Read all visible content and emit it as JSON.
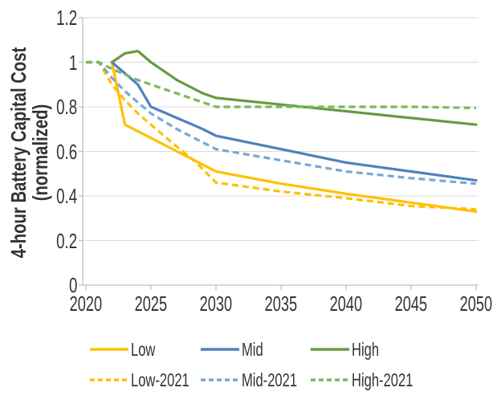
{
  "chart_data": {
    "type": "line",
    "ylabel": "4-hour Battery Capital Cost (normalized)",
    "ylabel_lines": [
      "4-hour Battery Capital Cost",
      "(normalized)"
    ],
    "xlabel": "",
    "xlim": [
      2020,
      2050
    ],
    "ylim": [
      0,
      1.2
    ],
    "x_ticks": [
      2020,
      2025,
      2030,
      2035,
      2040,
      2045,
      2050
    ],
    "x_tick_labels": [
      "2020",
      "2025",
      "2030",
      "2035",
      "2040",
      "2045",
      "2050"
    ],
    "y_ticks": [
      0,
      0.2,
      0.4,
      0.6,
      0.8,
      1,
      1.2
    ],
    "y_tick_labels": [
      "0",
      "0.2",
      "0.4",
      "0.6",
      "0.8",
      "1",
      "1.2"
    ],
    "grid": "horizontal",
    "legend_position": "bottom",
    "colors": {
      "low": "#FFC000",
      "low_2021": "#FFC000",
      "mid": "#4F81BD",
      "mid_2021": "#7BA7D7",
      "high": "#689B41",
      "high_2021": "#7CB85A",
      "gridline": "#d9d9d9",
      "axis": "#bfbfbf",
      "text": "#333333"
    },
    "series": [
      {
        "name": "Low",
        "color": "#FFC000",
        "dash": false,
        "x": [
          2022,
          2023,
          2024,
          2025,
          2026,
          2027,
          2028,
          2029,
          2030,
          2035,
          2040,
          2045,
          2050
        ],
        "y": [
          1.0,
          0.72,
          0.69,
          0.66,
          0.63,
          0.6,
          0.57,
          0.54,
          0.51,
          0.455,
          0.41,
          0.37,
          0.33
        ]
      },
      {
        "name": "Mid",
        "color": "#4F81BD",
        "dash": false,
        "x": [
          2022,
          2023,
          2024,
          2025,
          2026,
          2027,
          2028,
          2029,
          2030,
          2035,
          2040,
          2045,
          2050
        ],
        "y": [
          1.0,
          0.95,
          0.9,
          0.8,
          0.775,
          0.75,
          0.725,
          0.7,
          0.67,
          0.61,
          0.55,
          0.51,
          0.47
        ]
      },
      {
        "name": "High",
        "color": "#689B41",
        "dash": false,
        "x": [
          2022,
          2023,
          2024,
          2025,
          2026,
          2027,
          2028,
          2029,
          2030,
          2035,
          2040,
          2045,
          2050
        ],
        "y": [
          1.0,
          1.04,
          1.05,
          1.0,
          0.96,
          0.92,
          0.89,
          0.86,
          0.84,
          0.81,
          0.78,
          0.75,
          0.72
        ]
      },
      {
        "name": "Low-2021",
        "color": "#FFC000",
        "dash": true,
        "x": [
          2020,
          2021,
          2022,
          2023,
          2024,
          2025,
          2026,
          2027,
          2028,
          2029,
          2030,
          2035,
          2040,
          2045,
          2050
        ],
        "y": [
          1.0,
          1.0,
          0.9,
          0.83,
          0.77,
          0.72,
          0.67,
          0.62,
          0.575,
          0.52,
          0.46,
          0.42,
          0.39,
          0.355,
          0.34
        ]
      },
      {
        "name": "Mid-2021",
        "color": "#7BA7D7",
        "dash": true,
        "x": [
          2020,
          2021,
          2022,
          2023,
          2024,
          2025,
          2026,
          2027,
          2028,
          2029,
          2030,
          2035,
          2040,
          2045,
          2050
        ],
        "y": [
          1.0,
          1.0,
          0.93,
          0.87,
          0.82,
          0.77,
          0.735,
          0.7,
          0.67,
          0.64,
          0.61,
          0.56,
          0.51,
          0.48,
          0.455
        ]
      },
      {
        "name": "High-2021",
        "color": "#7CB85A",
        "dash": true,
        "x": [
          2020,
          2021,
          2022,
          2023,
          2024,
          2025,
          2026,
          2027,
          2028,
          2029,
          2030,
          2035,
          2040,
          2045,
          2050
        ],
        "y": [
          1.0,
          1.0,
          0.97,
          0.945,
          0.92,
          0.9,
          0.88,
          0.86,
          0.84,
          0.82,
          0.8,
          0.8,
          0.8,
          0.8,
          0.795
        ]
      }
    ],
    "legend": {
      "row1": [
        "Low",
        "Mid",
        "High"
      ],
      "row2": [
        "Low-2021",
        "Mid-2021",
        "High-2021"
      ]
    }
  }
}
